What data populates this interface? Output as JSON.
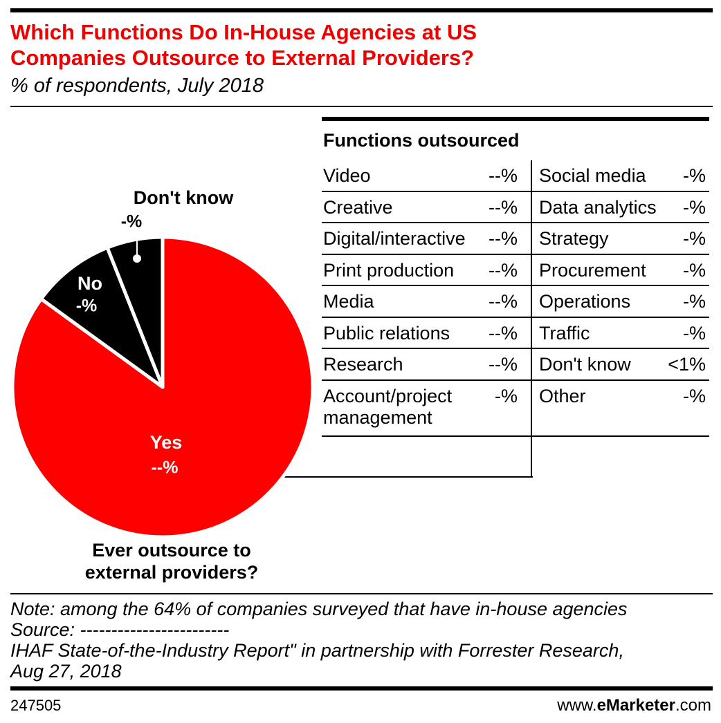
{
  "chart_data": {
    "type": "pie",
    "title": [
      "Which Functions Do In-House Agencies at US",
      "Companies Outsource to External Providers?"
    ],
    "subtitle": "% of respondents, July 2018",
    "categories": [
      "Yes",
      "No",
      "Don't know"
    ],
    "values": [
      85,
      9,
      6
    ],
    "value_labels": [
      "--%",
      "-%",
      "-%"
    ],
    "colors": [
      "#ff0000",
      "#000000",
      "#000000"
    ],
    "caption": [
      "Ever outsource to",
      "external providers?"
    ]
  },
  "table": {
    "title": "Functions outsourced",
    "left": [
      [
        "Video",
        "--%"
      ],
      [
        "Creative",
        "--%"
      ],
      [
        "Digital/interactive",
        "--%"
      ],
      [
        "Print production",
        "--%"
      ],
      [
        "Media",
        "--%"
      ],
      [
        "Public relations",
        "--%"
      ],
      [
        "Research",
        "--%"
      ],
      [
        "Account/project management",
        "-%"
      ]
    ],
    "right": [
      [
        "Social media",
        "-%"
      ],
      [
        "Data analytics",
        "-%"
      ],
      [
        "Strategy",
        "-%"
      ],
      [
        "Procurement",
        "-%"
      ],
      [
        "Operations",
        "-%"
      ],
      [
        "Traffic",
        "-%"
      ],
      [
        "Don't know",
        "<1%"
      ],
      [
        "Other",
        "-%"
      ]
    ]
  },
  "footer": {
    "note": "Note: among the 64% of companies surveyed that have in-house agencies",
    "source": [
      "Source: ------------------------",
      "IHAF State-of-the-Industry Report\" in partnership with Forrester Research,",
      "Aug 27, 2018"
    ],
    "id": "247505",
    "brand_prefix": "www.",
    "brand": "eMarketer",
    "brand_suffix": ".com"
  }
}
